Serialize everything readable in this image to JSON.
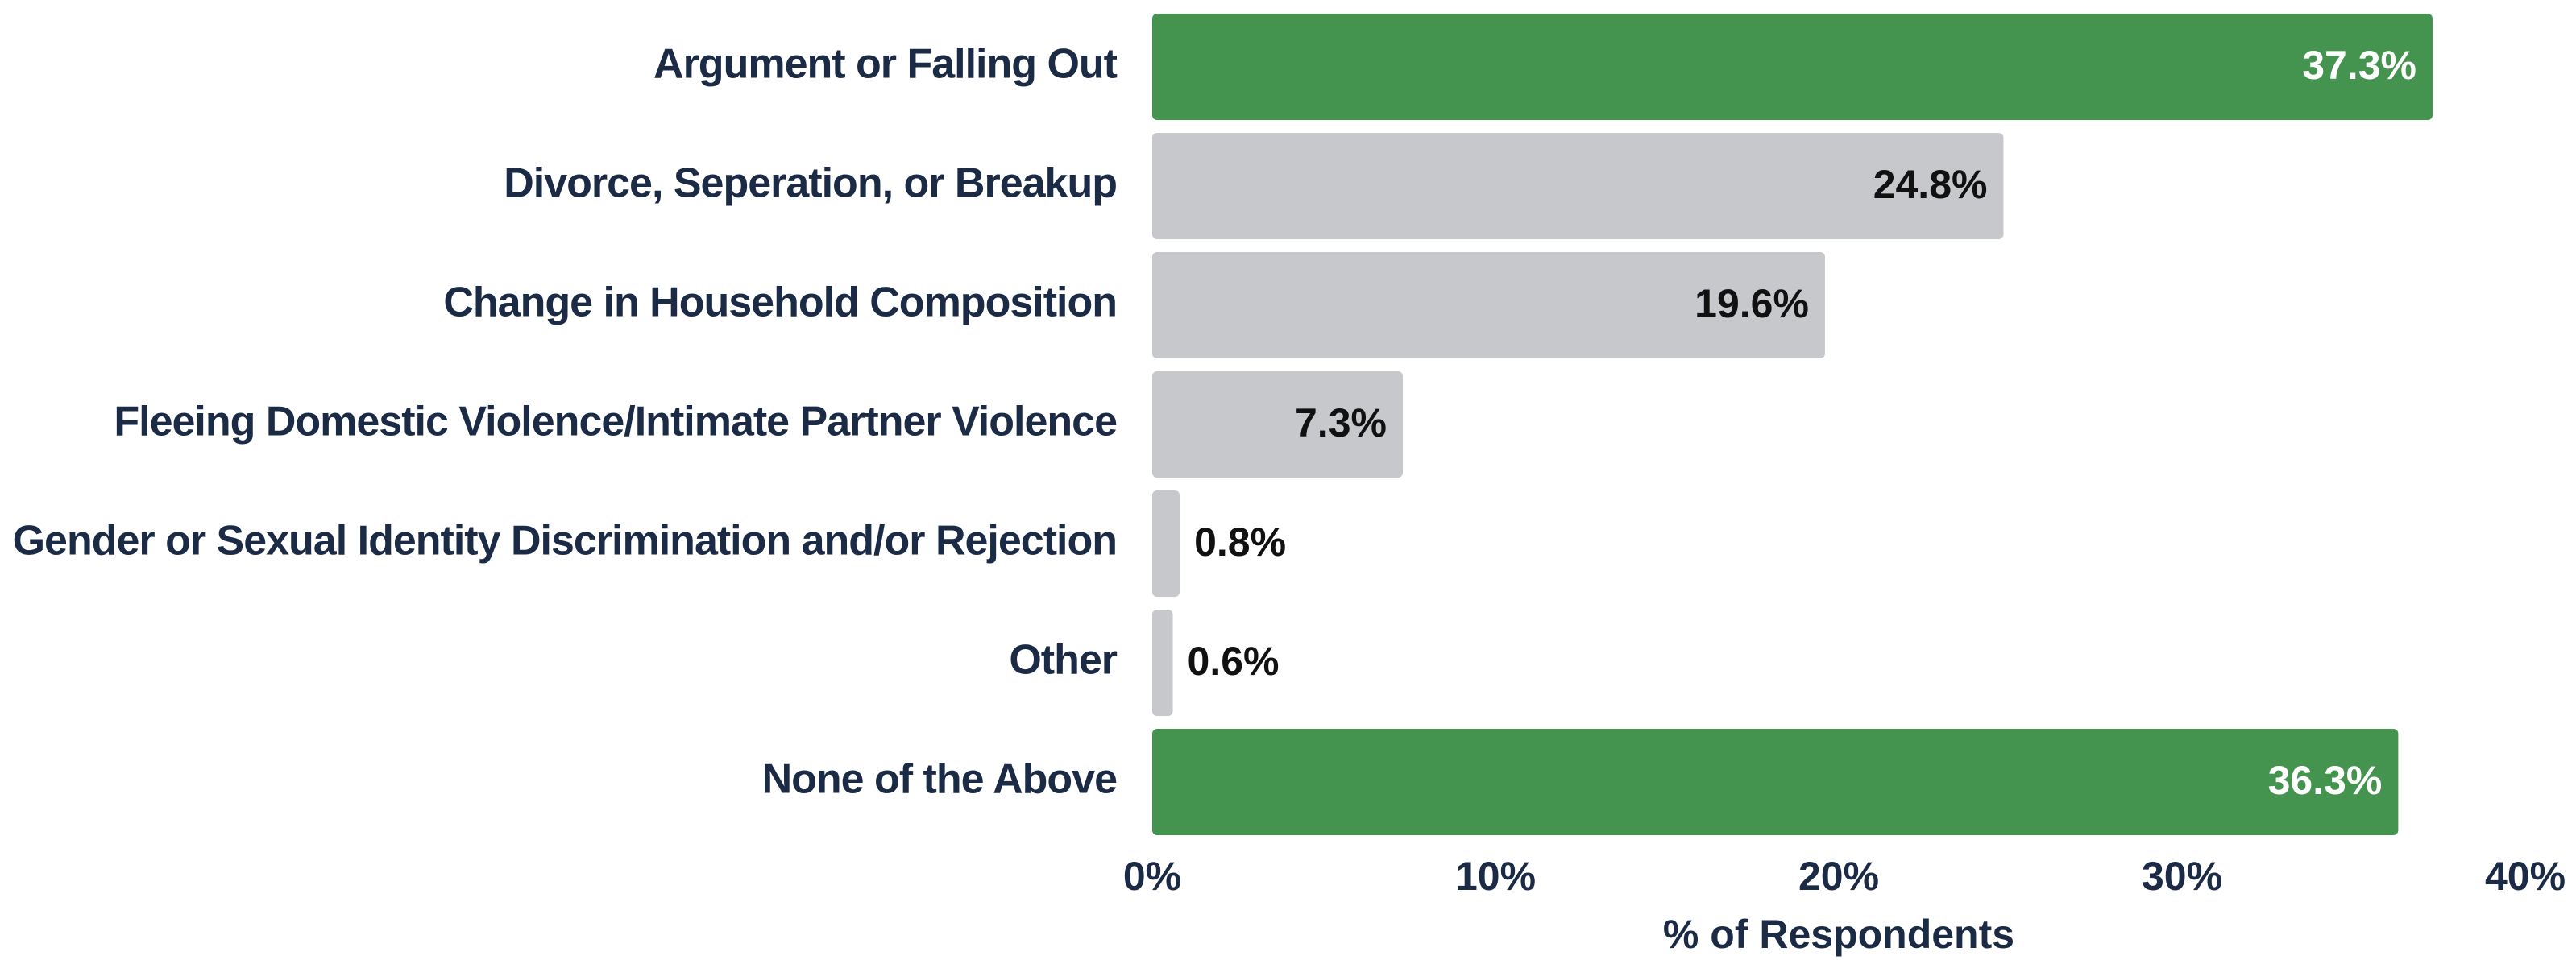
{
  "chart_data": {
    "type": "barh",
    "categories": [
      "Argument or Falling Out",
      "Divorce, Seperation, or Breakup",
      "Change in Household Composition",
      "Fleeing Domestic Violence/Intimate Partner Violence",
      "Gender or Sexual Identity Discrimination and/or Rejection",
      "Other",
      "None of the Above"
    ],
    "values": [
      37.3,
      24.8,
      19.6,
      7.3,
      0.8,
      0.6,
      36.3
    ],
    "value_labels": [
      "37.3%",
      "24.8%",
      "19.6%",
      "7.3%",
      "0.8%",
      "0.6%",
      "36.3%"
    ],
    "colors": [
      "#44944f",
      "#c7c8cb",
      "#c7c8cb",
      "#c7c8cb",
      "#c7c8cb",
      "#c7c8cb",
      "#44944f"
    ],
    "xlim": [
      0,
      40
    ],
    "xticks": [
      {
        "value": 0,
        "label": "0%"
      },
      {
        "value": 10,
        "label": "10%"
      },
      {
        "value": 20,
        "label": "20%"
      },
      {
        "value": 30,
        "label": "30%"
      },
      {
        "value": 40,
        "label": "40%"
      }
    ],
    "xlabel": "% of Respondents"
  }
}
